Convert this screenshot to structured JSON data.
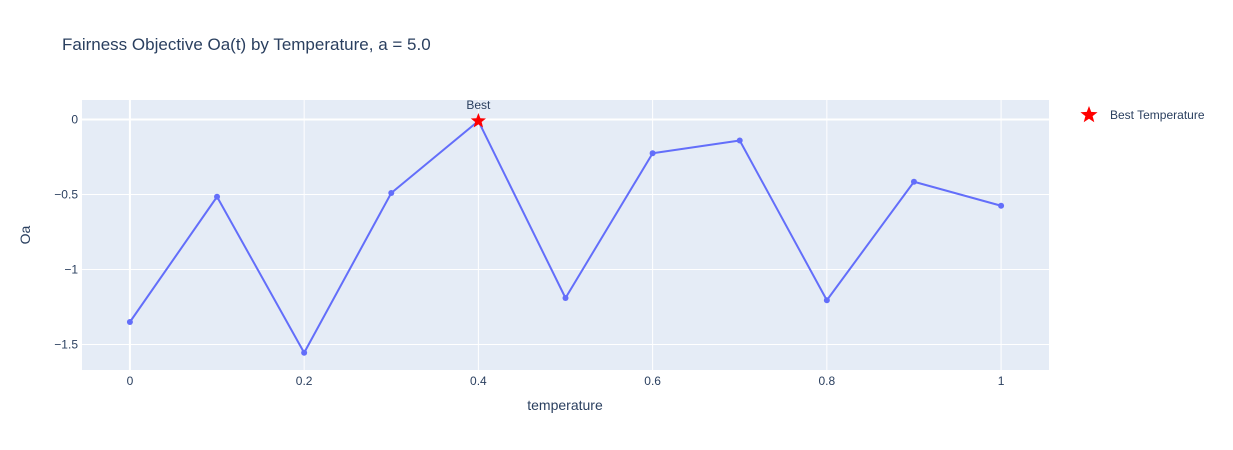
{
  "chart_data": {
    "type": "line",
    "title": "Fairness Objective Oa(t) by Temperature, a = 5.0",
    "xlabel": "temperature",
    "ylabel": "Oa",
    "xlim": [
      -0.055,
      1.055
    ],
    "ylim": [
      -1.67,
      0.13
    ],
    "x_ticks": [
      0,
      0.2,
      0.4,
      0.6,
      0.8,
      1
    ],
    "x_tick_labels": [
      "0",
      "0.2",
      "0.4",
      "0.6",
      "0.8",
      "1"
    ],
    "y_ticks": [
      0,
      -0.5,
      -1,
      -1.5
    ],
    "y_tick_labels": [
      "0",
      "−0.5",
      "−1",
      "−1.5"
    ],
    "grid": true,
    "legend_position": "top-right",
    "series": [
      {
        "x": [
          0,
          0.1,
          0.2,
          0.3,
          0.4,
          0.5,
          0.6,
          0.7,
          0.8,
          0.9,
          1.0
        ],
        "y": [
          -1.35,
          -0.515,
          -1.555,
          -0.49,
          -0.01,
          -1.19,
          -0.225,
          -0.14,
          -1.205,
          -0.415,
          -0.575
        ],
        "color": "#636efa",
        "mode": "lines+markers"
      },
      {
        "name": "Best Temperature",
        "x": [
          0.4
        ],
        "y": [
          -0.01
        ],
        "color": "#ff0000",
        "marker": "star"
      }
    ],
    "annotations": [
      {
        "text": "Best",
        "x": 0.4,
        "y": -0.01
      }
    ]
  },
  "colors": {
    "plot_background": "#e5ecf6",
    "grid": "#ffffff",
    "text": "#2a3f5f",
    "line": "#636efa",
    "best_marker": "#ff0000"
  }
}
